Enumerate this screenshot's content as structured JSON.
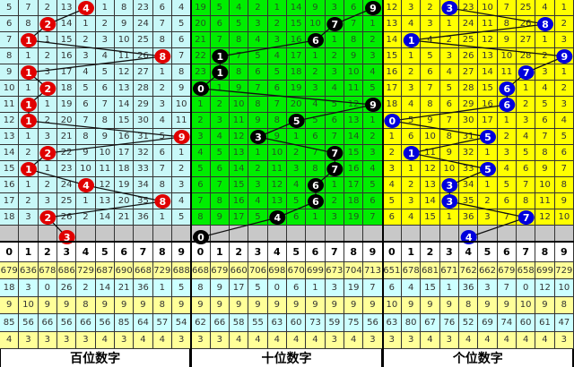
{
  "panels": [
    {
      "label": "百位数字",
      "bg": "#c8f8f8",
      "text": "#333333",
      "ball": "#e00000",
      "rows": [
        {
          "cells": [
            "5",
            "7",
            "2",
            "13",
            "4",
            "1",
            "8",
            "23",
            "6",
            "4"
          ],
          "hit": 4
        },
        {
          "cells": [
            "6",
            "8",
            "2",
            "14",
            "1",
            "2",
            "9",
            "24",
            "7",
            "5"
          ],
          "hit": 2
        },
        {
          "cells": [
            "7",
            "1",
            "1",
            "15",
            "2",
            "3",
            "10",
            "25",
            "8",
            "6"
          ],
          "hit": 1
        },
        {
          "cells": [
            "8",
            "1",
            "2",
            "16",
            "3",
            "4",
            "11",
            "26",
            "8",
            "7"
          ],
          "hit": 8
        },
        {
          "cells": [
            "9",
            "1",
            "3",
            "17",
            "4",
            "5",
            "12",
            "27",
            "1",
            "8"
          ],
          "hit": 1
        },
        {
          "cells": [
            "10",
            "1",
            "2",
            "18",
            "5",
            "6",
            "13",
            "28",
            "2",
            "9"
          ],
          "hit": 2
        },
        {
          "cells": [
            "11",
            "1",
            "1",
            "19",
            "6",
            "7",
            "14",
            "29",
            "3",
            "10"
          ],
          "hit": 1
        },
        {
          "cells": [
            "12",
            "1",
            "2",
            "20",
            "7",
            "8",
            "15",
            "30",
            "4",
            "11"
          ],
          "hit": 1
        },
        {
          "cells": [
            "13",
            "1",
            "3",
            "21",
            "8",
            "9",
            "16",
            "31",
            "5",
            "9"
          ],
          "hit": 9
        },
        {
          "cells": [
            "14",
            "2",
            "2",
            "22",
            "9",
            "10",
            "17",
            "32",
            "6",
            "1"
          ],
          "hit": 2
        },
        {
          "cells": [
            "15",
            "1",
            "1",
            "23",
            "10",
            "11",
            "18",
            "33",
            "7",
            "2"
          ],
          "hit": 1
        },
        {
          "cells": [
            "16",
            "1",
            "2",
            "24",
            "4",
            "12",
            "19",
            "34",
            "8",
            "3"
          ],
          "hit": 4
        },
        {
          "cells": [
            "17",
            "2",
            "3",
            "25",
            "1",
            "13",
            "20",
            "35",
            "8",
            "4"
          ],
          "hit": 8
        },
        {
          "cells": [
            "18",
            "3",
            "2",
            "26",
            "2",
            "14",
            "21",
            "36",
            "1",
            "5"
          ],
          "hit": 2
        }
      ],
      "next": {
        "digit": "3",
        "col": 3
      },
      "header": [
        "0",
        "1",
        "2",
        "3",
        "4",
        "5",
        "6",
        "7",
        "8",
        "9"
      ],
      "stats": [
        [
          "679",
          "636",
          "678",
          "686",
          "729",
          "687",
          "690",
          "668",
          "729",
          "688"
        ],
        [
          "18",
          "3",
          "0",
          "26",
          "2",
          "14",
          "21",
          "36",
          "1",
          "5"
        ],
        [
          "9",
          "10",
          "9",
          "9",
          "8",
          "9",
          "9",
          "9",
          "8",
          "9"
        ],
        [
          "85",
          "56",
          "66",
          "56",
          "66",
          "56",
          "85",
          "64",
          "57",
          "54"
        ],
        [
          "4",
          "3",
          "3",
          "3",
          "3",
          "4",
          "3",
          "4",
          "4",
          "3"
        ]
      ]
    },
    {
      "label": "十位数字",
      "bg": "#00ee00",
      "text": "#225522",
      "ball": "#000000",
      "rows": [
        {
          "cells": [
            "19",
            "5",
            "4",
            "2",
            "1",
            "14",
            "9",
            "3",
            "6",
            "9"
          ],
          "hit": 9
        },
        {
          "cells": [
            "20",
            "6",
            "5",
            "3",
            "2",
            "15",
            "10",
            "7",
            "7",
            "1"
          ],
          "hit": 7
        },
        {
          "cells": [
            "21",
            "7",
            "8",
            "4",
            "3",
            "16",
            "6",
            "1",
            "8",
            "2"
          ],
          "hit": 6
        },
        {
          "cells": [
            "22",
            "1",
            "7",
            "5",
            "4",
            "17",
            "1",
            "2",
            "9",
            "3"
          ],
          "hit": 1
        },
        {
          "cells": [
            "23",
            "1",
            "8",
            "6",
            "5",
            "18",
            "2",
            "3",
            "10",
            "4"
          ],
          "hit": 1
        },
        {
          "cells": [
            "0",
            "1",
            "9",
            "7",
            "6",
            "19",
            "3",
            "4",
            "11",
            "5"
          ],
          "hit": 0
        },
        {
          "cells": [
            "1",
            "2",
            "10",
            "8",
            "7",
            "20",
            "4",
            "5",
            "12",
            "9"
          ],
          "hit": 9
        },
        {
          "cells": [
            "2",
            "3",
            "11",
            "9",
            "8",
            "5",
            "5",
            "6",
            "13",
            "1"
          ],
          "hit": 5
        },
        {
          "cells": [
            "3",
            "4",
            "12",
            "3",
            "9",
            "1",
            "6",
            "7",
            "14",
            "2"
          ],
          "hit": 3
        },
        {
          "cells": [
            "4",
            "5",
            "13",
            "1",
            "10",
            "2",
            "7",
            "7",
            "15",
            "3"
          ],
          "hit": 7
        },
        {
          "cells": [
            "5",
            "6",
            "14",
            "2",
            "11",
            "3",
            "8",
            "7",
            "16",
            "4"
          ],
          "hit": 7
        },
        {
          "cells": [
            "6",
            "7",
            "15",
            "3",
            "12",
            "4",
            "6",
            "1",
            "17",
            "5"
          ],
          "hit": 6
        },
        {
          "cells": [
            "7",
            "8",
            "16",
            "4",
            "13",
            "5",
            "6",
            "2",
            "18",
            "6"
          ],
          "hit": 6
        },
        {
          "cells": [
            "8",
            "9",
            "17",
            "5",
            "4",
            "6",
            "1",
            "3",
            "19",
            "7"
          ],
          "hit": 4
        }
      ],
      "next": {
        "digit": "0",
        "col": 0
      },
      "header": [
        "0",
        "1",
        "2",
        "3",
        "4",
        "5",
        "6",
        "7",
        "8",
        "9"
      ],
      "stats": [
        [
          "668",
          "679",
          "660",
          "706",
          "698",
          "670",
          "699",
          "673",
          "704",
          "713"
        ],
        [
          "8",
          "9",
          "17",
          "5",
          "0",
          "6",
          "1",
          "3",
          "19",
          "7"
        ],
        [
          "9",
          "9",
          "9",
          "9",
          "9",
          "9",
          "9",
          "9",
          "9",
          "9"
        ],
        [
          "62",
          "66",
          "58",
          "55",
          "63",
          "60",
          "73",
          "59",
          "75",
          "56"
        ],
        [
          "3",
          "3",
          "4",
          "4",
          "4",
          "4",
          "4",
          "3",
          "4",
          "3"
        ]
      ]
    },
    {
      "label": "个位数字",
      "bg": "#ffff00",
      "text": "#333333",
      "ball": "#0000dd",
      "rows": [
        {
          "cells": [
            "12",
            "3",
            "2",
            "3",
            "23",
            "10",
            "7",
            "25",
            "4",
            "1"
          ],
          "hit": 3
        },
        {
          "cells": [
            "13",
            "4",
            "3",
            "1",
            "24",
            "11",
            "8",
            "26",
            "8",
            "2"
          ],
          "hit": 8
        },
        {
          "cells": [
            "14",
            "1",
            "4",
            "2",
            "25",
            "12",
            "9",
            "27",
            "1",
            "3"
          ],
          "hit": 1
        },
        {
          "cells": [
            "15",
            "1",
            "5",
            "3",
            "26",
            "13",
            "10",
            "28",
            "2",
            "9"
          ],
          "hit": 9
        },
        {
          "cells": [
            "16",
            "2",
            "6",
            "4",
            "27",
            "14",
            "11",
            "7",
            "3",
            "1"
          ],
          "hit": 7
        },
        {
          "cells": [
            "17",
            "3",
            "7",
            "5",
            "28",
            "15",
            "6",
            "1",
            "4",
            "2"
          ],
          "hit": 6
        },
        {
          "cells": [
            "18",
            "4",
            "8",
            "6",
            "29",
            "16",
            "6",
            "2",
            "5",
            "3"
          ],
          "hit": 6
        },
        {
          "cells": [
            "0",
            "5",
            "9",
            "7",
            "30",
            "17",
            "1",
            "3",
            "6",
            "4"
          ],
          "hit": 0
        },
        {
          "cells": [
            "1",
            "6",
            "10",
            "8",
            "31",
            "5",
            "2",
            "4",
            "7",
            "5"
          ],
          "hit": 5
        },
        {
          "cells": [
            "2",
            "1",
            "11",
            "9",
            "32",
            "1",
            "3",
            "5",
            "8",
            "6"
          ],
          "hit": 1
        },
        {
          "cells": [
            "3",
            "1",
            "12",
            "10",
            "33",
            "5",
            "4",
            "6",
            "9",
            "7"
          ],
          "hit": 5
        },
        {
          "cells": [
            "4",
            "2",
            "13",
            "3",
            "34",
            "1",
            "5",
            "7",
            "10",
            "8"
          ],
          "hit": 3
        },
        {
          "cells": [
            "5",
            "3",
            "14",
            "3",
            "35",
            "2",
            "6",
            "8",
            "11",
            "9"
          ],
          "hit": 3
        },
        {
          "cells": [
            "6",
            "4",
            "15",
            "1",
            "36",
            "3",
            "7",
            "7",
            "12",
            "10"
          ],
          "hit": 7
        }
      ],
      "next": {
        "digit": "4",
        "col": 4
      },
      "header": [
        "0",
        "1",
        "2",
        "3",
        "4",
        "5",
        "6",
        "7",
        "8",
        "9"
      ],
      "stats": [
        [
          "651",
          "678",
          "681",
          "671",
          "762",
          "662",
          "679",
          "658",
          "699",
          "729"
        ],
        [
          "6",
          "4",
          "15",
          "1",
          "36",
          "3",
          "7",
          "0",
          "12",
          "10"
        ],
        [
          "10",
          "9",
          "9",
          "9",
          "8",
          "9",
          "9",
          "10",
          "9",
          "8"
        ],
        [
          "63",
          "80",
          "67",
          "76",
          "52",
          "69",
          "74",
          "60",
          "61",
          "47"
        ],
        [
          "3",
          "3",
          "4",
          "3",
          "4",
          "4",
          "4",
          "4",
          "4",
          "3"
        ]
      ]
    }
  ]
}
